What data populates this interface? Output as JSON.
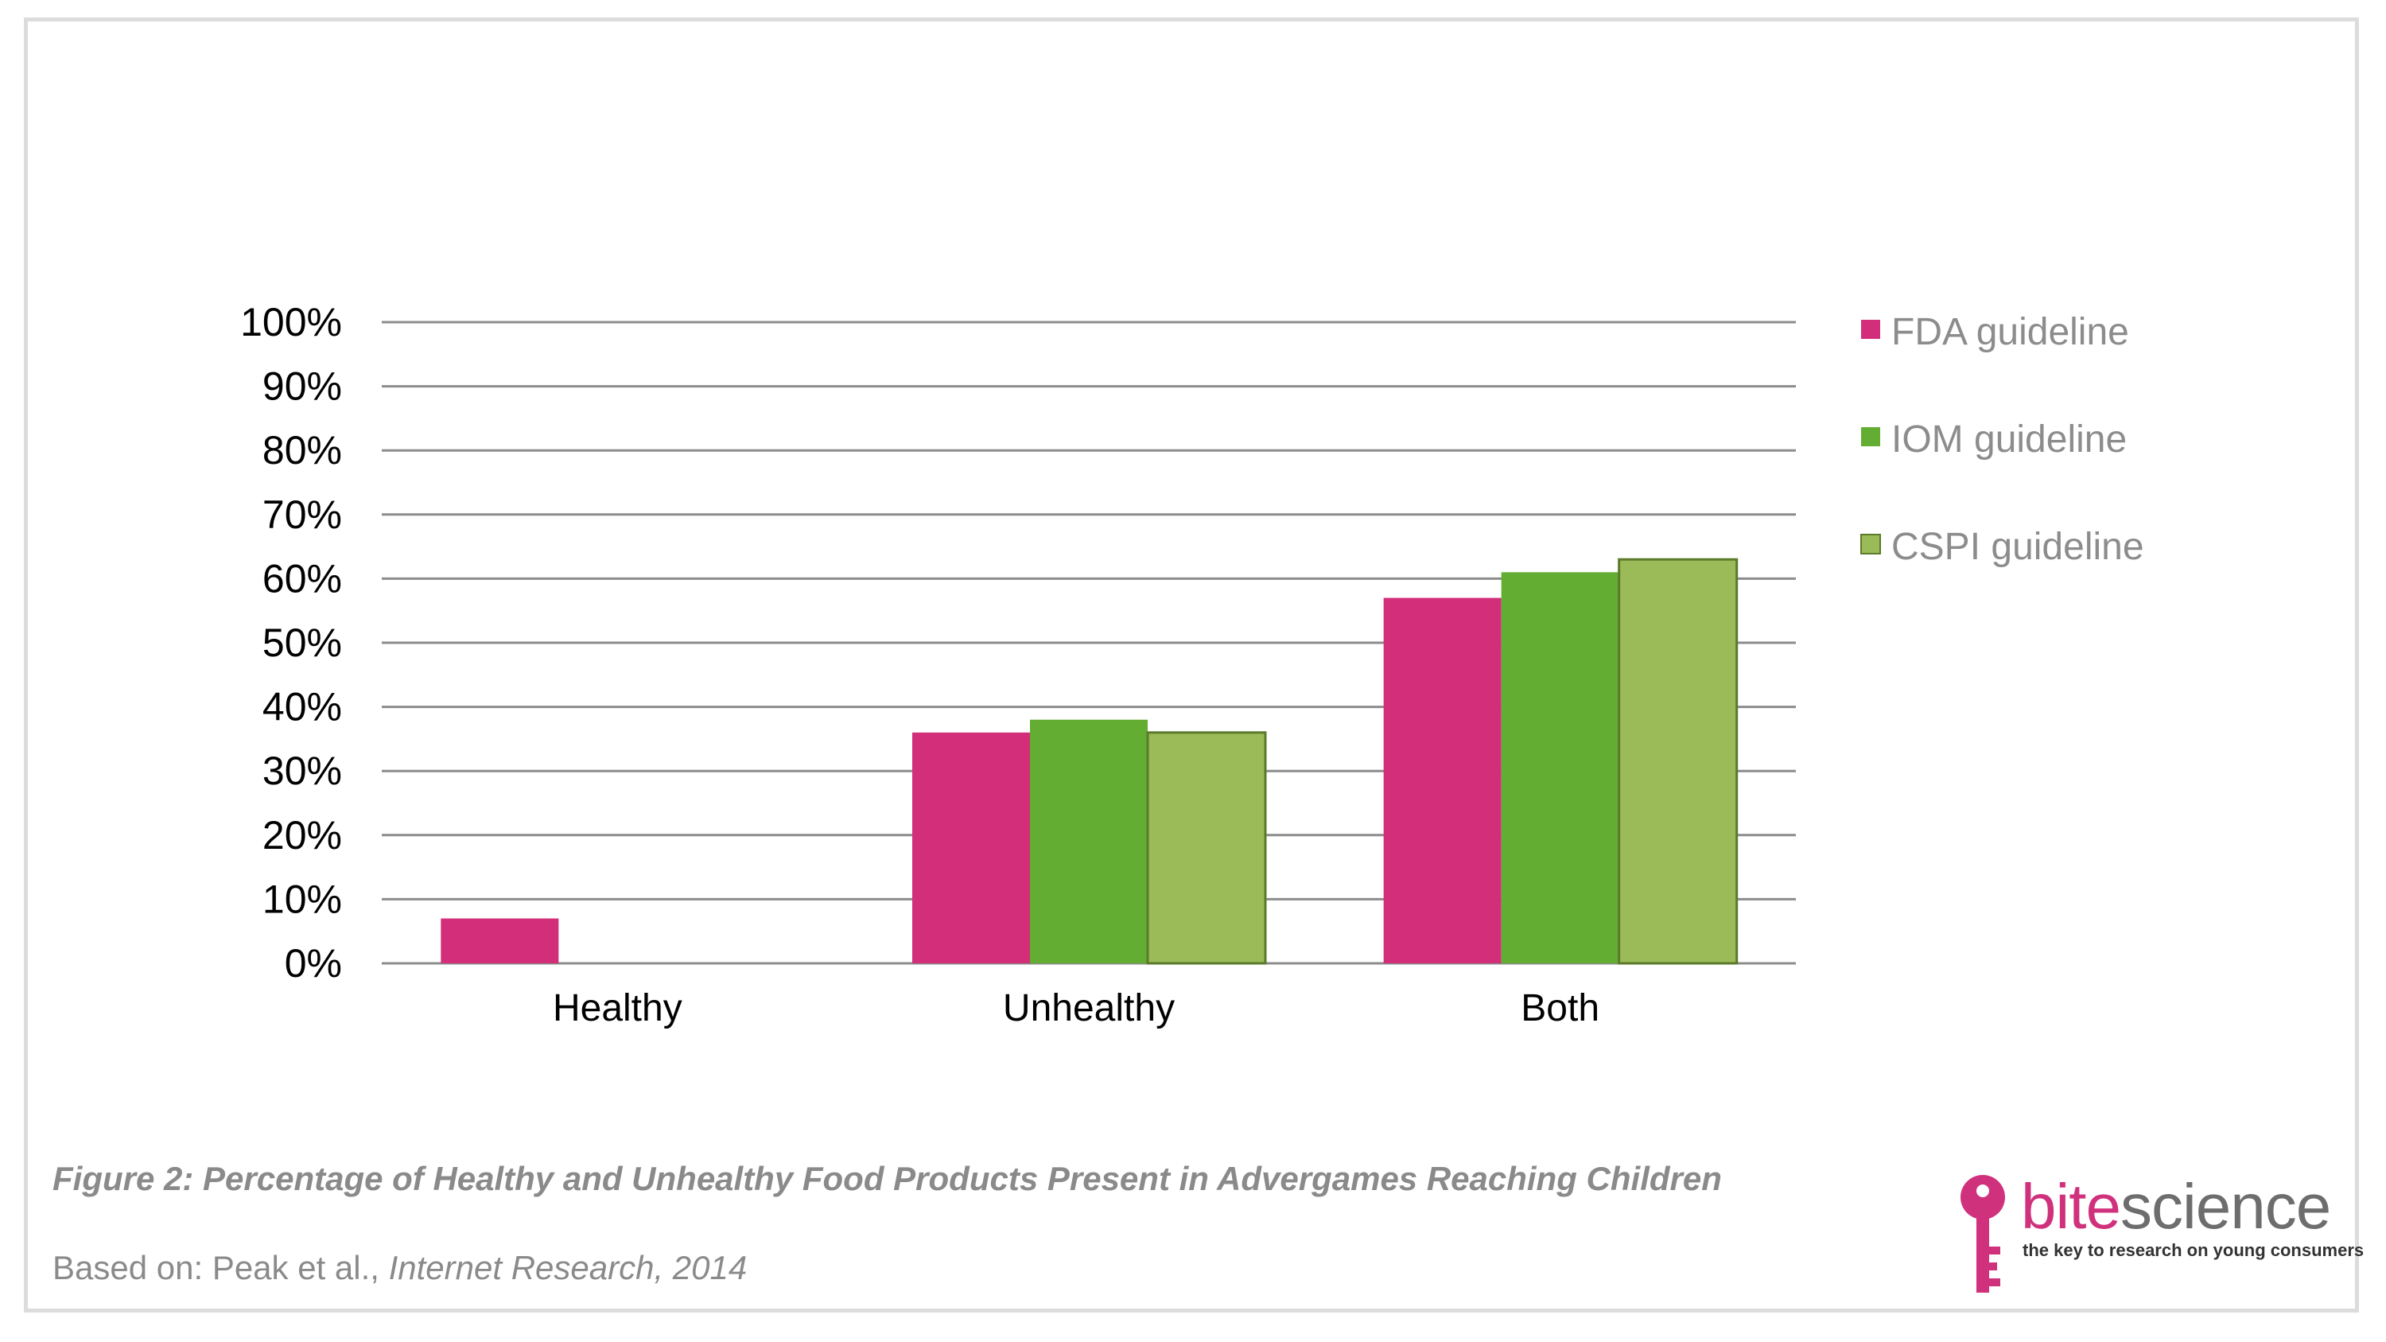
{
  "colors": {
    "fda": "#d22e79",
    "iom": "#62ad32",
    "cspi": "#9bbb59",
    "axis_text": "#000000",
    "legend_text": "#8c8c8c",
    "grid": "#8c8c8c",
    "brand": "#d0317c"
  },
  "chart_data": {
    "type": "bar",
    "categories": [
      "Healthy",
      "Unhealthy",
      "Both"
    ],
    "series": [
      {
        "name": "FDA guideline",
        "values": [
          7,
          36,
          57
        ]
      },
      {
        "name": "IOM guideline",
        "values": [
          0,
          38,
          61
        ]
      },
      {
        "name": "CSPI guideline",
        "values": [
          0,
          36,
          63
        ]
      }
    ],
    "y_ticks": [
      "0%",
      "10%",
      "20%",
      "30%",
      "40%",
      "50%",
      "60%",
      "70%",
      "80%",
      "90%",
      "100%"
    ],
    "ylim": [
      0,
      100
    ],
    "grid": true,
    "legend_position": "right"
  },
  "caption": "Figure 2: Percentage of Healthy and Unhealthy Food Products Present in Advergames Reaching Children",
  "source": {
    "prefix": "Based on: Peak et al., ",
    "journal": "Internet Research, 2014"
  },
  "logo": {
    "word_pink": "bite",
    "word_dark": "science",
    "tagline": "the key to research on young consumers",
    "icon": "key-icon"
  }
}
